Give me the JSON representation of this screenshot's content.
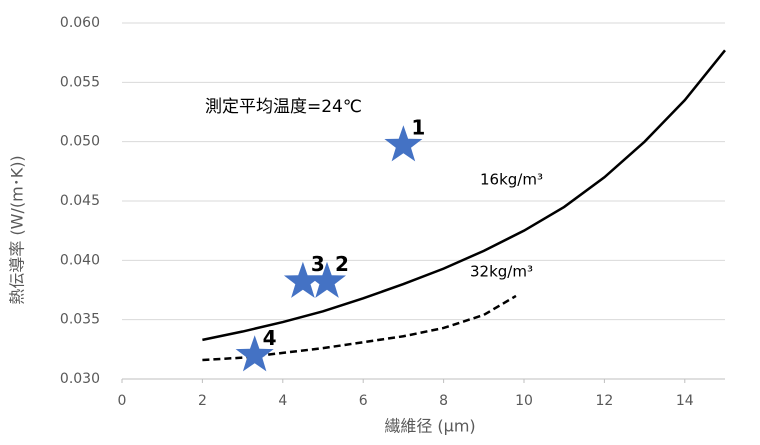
{
  "chart_data": {
    "type": "line",
    "x_label": "繊維径 (μm)",
    "y_label": "熱伝導率 (W/(m･K))",
    "annotation": "測定平均温度=24℃",
    "xlim": [
      0,
      15
    ],
    "xticks": [
      0,
      2,
      4,
      6,
      8,
      10,
      12,
      14
    ],
    "ylim": [
      0.03,
      0.06
    ],
    "yticks": [
      {
        "value": 0.03,
        "label": "0.030"
      },
      {
        "value": 0.035,
        "label": "0.035"
      },
      {
        "value": 0.04,
        "label": "0.040"
      },
      {
        "value": 0.045,
        "label": "0.045"
      },
      {
        "value": 0.05,
        "label": "0.050"
      },
      {
        "value": 0.055,
        "label": "0.055"
      },
      {
        "value": 0.06,
        "label": "0.060"
      }
    ],
    "grid": true,
    "series": [
      {
        "name": "16kg/m³",
        "color": "#000000",
        "dashed": false,
        "x": [
          2,
          3,
          4,
          5,
          6,
          7,
          8,
          9,
          10,
          11,
          12,
          13,
          14,
          15
        ],
        "values": [
          0.0333,
          0.034,
          0.0348,
          0.0357,
          0.0368,
          0.038,
          0.0393,
          0.0408,
          0.0425,
          0.0445,
          0.047,
          0.05,
          0.0535,
          0.0577
        ]
      },
      {
        "name": "32kg/m³",
        "color": "#000000",
        "dashed": true,
        "x": [
          2,
          3,
          4,
          5,
          6,
          7,
          8,
          9,
          9.8
        ],
        "values": [
          0.0316,
          0.0318,
          0.0322,
          0.0326,
          0.0331,
          0.0336,
          0.0343,
          0.0354,
          0.037
        ]
      }
    ],
    "points": {
      "color": "#4472c4",
      "labels": [
        "1",
        "2",
        "3",
        "4"
      ],
      "x": [
        7.0,
        5.1,
        4.5,
        3.3
      ],
      "values": [
        0.0497,
        0.0382,
        0.0382,
        0.032
      ]
    }
  }
}
